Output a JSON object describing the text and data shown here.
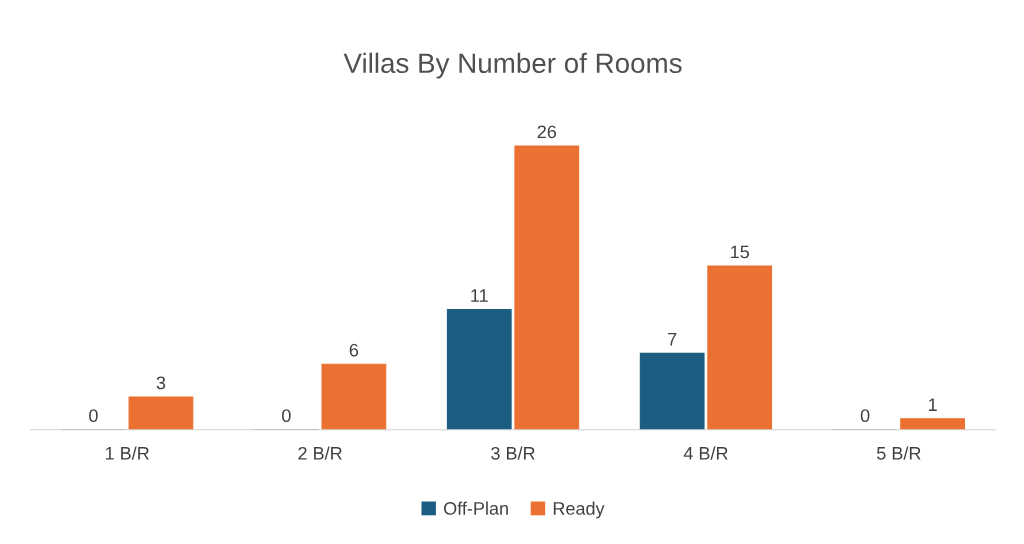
{
  "chart_data": {
    "type": "bar",
    "title": "Villas By Number of Rooms",
    "categories": [
      "1 B/R",
      "2 B/R",
      "3 B/R",
      "4 B/R",
      "5 B/R"
    ],
    "series": [
      {
        "name": "Off-Plan",
        "color": "#1b5e82",
        "values": [
          0,
          0,
          11,
          7,
          0
        ]
      },
      {
        "name": "Ready",
        "color": "#ea7131",
        "values": [
          3,
          6,
          26,
          15,
          1
        ]
      }
    ],
    "data_labels": true,
    "legend": "bottom",
    "grid": false,
    "tick_labels": "x"
  }
}
